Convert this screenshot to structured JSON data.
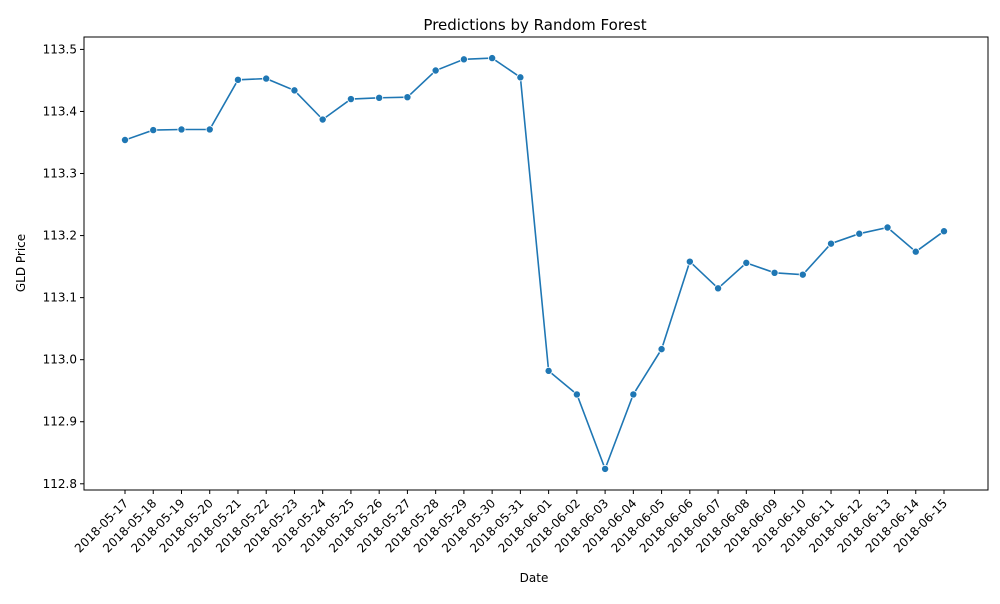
{
  "chart_data": {
    "type": "line",
    "title": "Predictions by Random Forest",
    "xlabel": "Date",
    "ylabel": "GLD Price",
    "ylim": [
      112.79,
      113.52
    ],
    "yticks": [
      112.8,
      112.9,
      113.0,
      113.1,
      113.2,
      113.3,
      113.4,
      113.5
    ],
    "ytick_labels": [
      "112.8",
      "112.9",
      "113.0",
      "113.1",
      "113.2",
      "113.3",
      "113.4",
      "113.5"
    ],
    "grid": false,
    "color": "#1f77b4",
    "x": [
      "2018-05-17",
      "2018-05-18",
      "2018-05-19",
      "2018-05-20",
      "2018-05-21",
      "2018-05-22",
      "2018-05-23",
      "2018-05-24",
      "2018-05-25",
      "2018-05-26",
      "2018-05-27",
      "2018-05-28",
      "2018-05-29",
      "2018-05-30",
      "2018-05-31",
      "2018-06-01",
      "2018-06-02",
      "2018-06-03",
      "2018-06-04",
      "2018-06-05",
      "2018-06-06",
      "2018-06-07",
      "2018-06-08",
      "2018-06-09",
      "2018-06-10",
      "2018-06-11",
      "2018-06-12",
      "2018-06-13",
      "2018-06-14",
      "2018-06-15"
    ],
    "series": [
      {
        "values": [
          113.354,
          113.37,
          113.371,
          113.371,
          113.451,
          113.453,
          113.434,
          113.387,
          113.42,
          113.422,
          113.423,
          113.466,
          113.484,
          113.486,
          113.455,
          112.982,
          112.944,
          112.824,
          112.944,
          113.017,
          113.158,
          113.115,
          113.156,
          113.14,
          113.137,
          113.187,
          113.203,
          113.213,
          113.174,
          113.207
        ]
      }
    ]
  }
}
